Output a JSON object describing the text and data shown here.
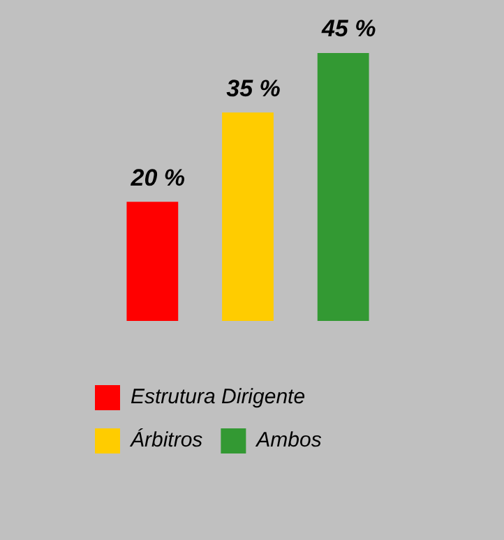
{
  "chart_data": {
    "type": "bar",
    "stacked": true,
    "categories": [
      null,
      null,
      null
    ],
    "series": [
      {
        "name": "Estrutura Dirigente",
        "color": "#ff0000",
        "values": [
          20,
          null,
          null
        ],
        "value_labels": [
          "20 %",
          null,
          null
        ]
      },
      {
        "name": "Árbitros",
        "color": "#ffcc00",
        "values": [
          null,
          35,
          null
        ],
        "value_labels": [
          null,
          "35 %",
          null
        ]
      },
      {
        "name": "Ambos",
        "color": "#339933",
        "values": [
          null,
          null,
          45
        ],
        "value_labels": [
          null,
          null,
          "45 %"
        ]
      }
    ],
    "legend": "bottom"
  }
}
